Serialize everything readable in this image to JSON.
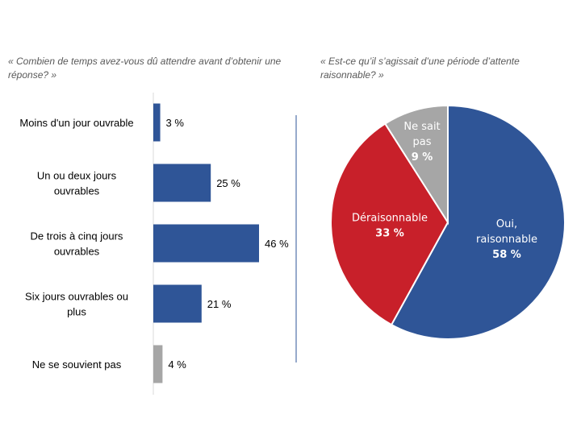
{
  "chart_data": [
    {
      "type": "bar",
      "orientation": "horizontal",
      "title": "« Combien de temps avez-vous dû attendre avant d’obtenir une réponse? »",
      "categories": [
        "Moins d'un jour ouvrable",
        "Un ou deux jours ouvrables",
        "De trois à cinq jours ouvrables",
        "Six jours ouvrables ou plus",
        "Ne se souvient pas"
      ],
      "values": [
        3,
        25,
        46,
        21,
        4
      ],
      "data_labels": [
        "3 %",
        "25 %",
        "46 %",
        "21 %",
        "4 %"
      ],
      "colors": [
        "#2F5597",
        "#2F5597",
        "#2F5597",
        "#2F5597",
        "#A6A6A6"
      ],
      "xlim": [
        0,
        50
      ],
      "grid": false
    },
    {
      "type": "pie",
      "title": "« Est-ce qu’il s’agissait d’une période d’attente raisonnable? »",
      "slices": [
        {
          "label": "Oui, raisonnable",
          "label_lines": [
            "Oui,",
            "raisonnable"
          ],
          "value": 58,
          "data_label": "58 %",
          "color": "#2F5597"
        },
        {
          "label": "Déraisonnable",
          "label_lines": [
            "Déraisonnable"
          ],
          "value": 33,
          "data_label": "33 %",
          "color": "#C8202A"
        },
        {
          "label": "Ne sait pas",
          "label_lines": [
            "Ne sait",
            "pas"
          ],
          "value": 9,
          "data_label": "9 %",
          "color": "#A6A6A6"
        }
      ]
    }
  ]
}
